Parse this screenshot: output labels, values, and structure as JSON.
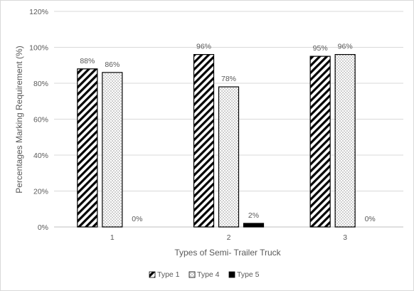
{
  "chart_data": {
    "type": "bar",
    "title": "",
    "xlabel": "Types of Semi- Trailer Truck",
    "ylabel": "Percentages Marking Requirement (%)",
    "categories": [
      "1",
      "2",
      "3"
    ],
    "ylim": [
      0,
      120
    ],
    "y_ticks": [
      "0%",
      "20%",
      "40%",
      "60%",
      "80%",
      "100%",
      "120%"
    ],
    "grid": "horizontal",
    "legend_position": "bottom",
    "series": [
      {
        "name": "Type 1",
        "values": [
          88,
          96,
          95
        ],
        "labels": [
          "88%",
          "96%",
          "95%"
        ],
        "pattern": "diagonal-stripes"
      },
      {
        "name": "Type 4",
        "values": [
          86,
          78,
          96
        ],
        "labels": [
          "86%",
          "78%",
          "96%"
        ],
        "pattern": "dots"
      },
      {
        "name": "Type 5",
        "values": [
          0,
          2,
          0
        ],
        "labels": [
          "0%",
          "2%",
          "0%"
        ],
        "pattern": "solid-black"
      }
    ],
    "colors": {
      "grid": "#d9d9d9",
      "text": "#595959",
      "bar_outline": "#000000"
    }
  }
}
